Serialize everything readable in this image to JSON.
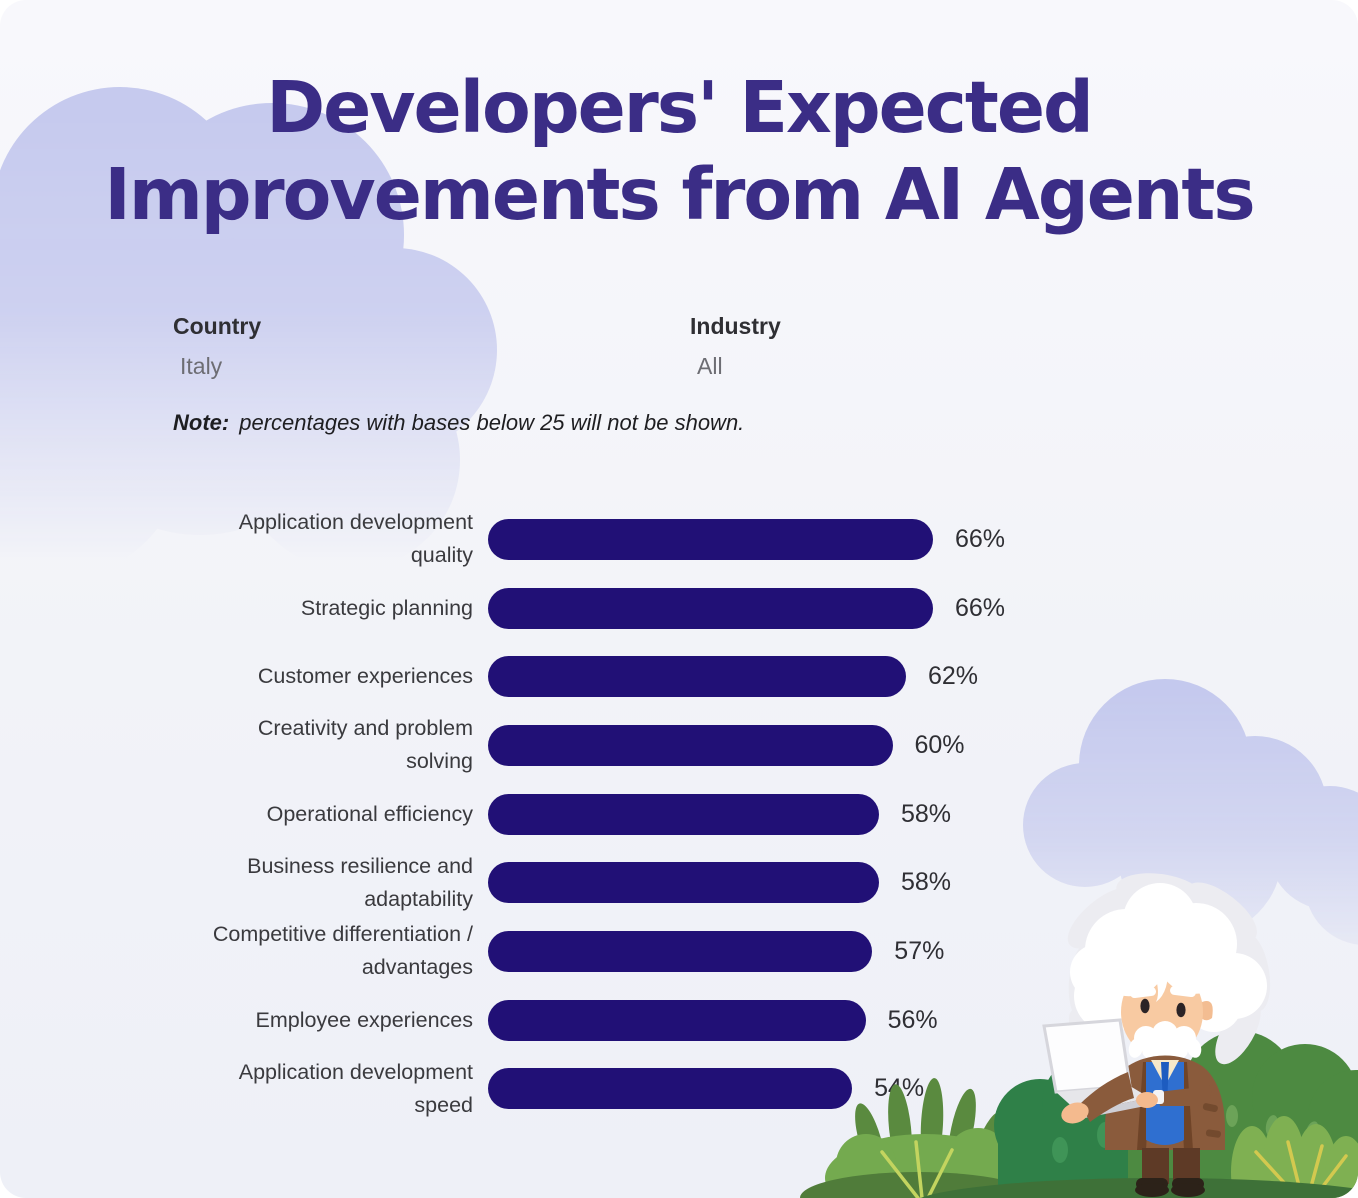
{
  "title": {
    "line1": "Developers' Expected",
    "line2": "Improvements from AI Agents"
  },
  "filters": {
    "country": {
      "label": "Country",
      "value": "Italy"
    },
    "industry": {
      "label": "Industry",
      "value": "All"
    }
  },
  "note": {
    "label": "Note:",
    "text": "percentages with bases below 25 will not be shown."
  },
  "chart_data": {
    "type": "bar",
    "orientation": "horizontal",
    "title": "Developers' Expected Improvements from AI Agents",
    "categories": [
      "Application development quality",
      "Strategic planning",
      "Customer experiences",
      "Creativity and problem solving",
      "Operational efficiency",
      "Business resilience and adaptability",
      "Competitive differentiation / advantages",
      "Employee experiences",
      "Application development speed"
    ],
    "category_label_lines": [
      [
        "Application development",
        "quality"
      ],
      [
        "Strategic planning"
      ],
      [
        "Customer experiences"
      ],
      [
        "Creativity and problem",
        "solving"
      ],
      [
        "Operational efficiency"
      ],
      [
        "Business resilience and",
        "adaptability"
      ],
      [
        "Competitive differentiation /",
        "advantages"
      ],
      [
        "Employee experiences"
      ],
      [
        "Application development",
        "speed"
      ]
    ],
    "values": [
      66,
      66,
      62,
      60,
      58,
      58,
      57,
      56,
      54
    ],
    "unit": "%",
    "xlim": [
      0,
      100
    ],
    "grid": false,
    "value_label_position": "end",
    "bar_color": "#211076"
  },
  "colors": {
    "background_top": "#f8f8fc",
    "background_bottom": "#eef0f7",
    "title_text": "#3b2d86",
    "bar": "#211076",
    "category_text": "#3a3a3e",
    "cloud": "#c6caee",
    "bush_dark_green": "#2f8048",
    "bush_mid_green": "#4d8a41",
    "bush_light_green": "#7fb052"
  },
  "scene": {
    "mascot": "einstein-character-holding-laptop",
    "decor": [
      "lavender-clouds",
      "green-bushes"
    ]
  }
}
